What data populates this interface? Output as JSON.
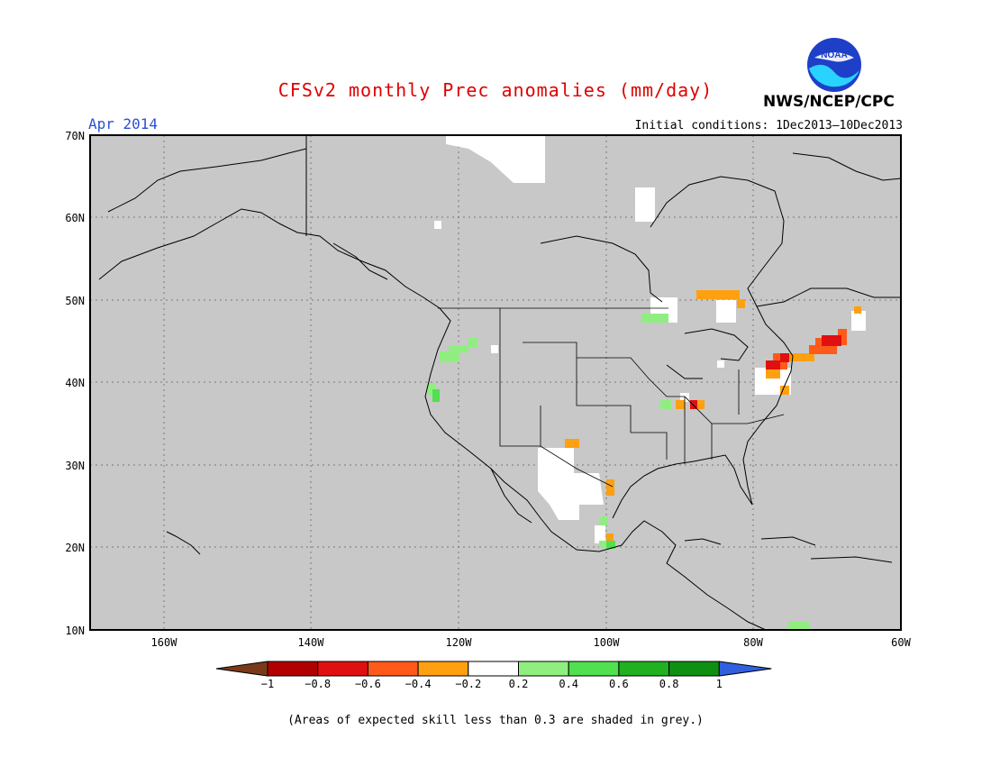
{
  "title": "CFSv2 monthly Prec anomalies (mm/day)",
  "month": "Apr 2014",
  "initial_conditions": "Initial conditions: 1Dec2013–10Dec2013",
  "agency": "NWS/NCEP/CPC",
  "logo_text": "NOAA",
  "footnote": "(Areas of expected skill less than 0.3 are shaded in grey.)",
  "lat_labels": [
    "70N",
    "60N",
    "50N",
    "40N",
    "30N",
    "20N",
    "10N"
  ],
  "lon_labels": [
    "160W",
    "140W",
    "120W",
    "100W",
    "80W",
    "60W"
  ],
  "colorbar": {
    "labels": [
      "−1",
      "−0.8",
      "−0.6",
      "−0.4",
      "−0.2",
      "0.2",
      "0.4",
      "0.6",
      "0.8",
      "1"
    ],
    "colors": [
      "#7a3a1a",
      "#b00000",
      "#e01010",
      "#ff5a1a",
      "#ffa010",
      "#ffffff",
      "#90ee80",
      "#50e050",
      "#20b020",
      "#109010",
      "#3060e0"
    ]
  },
  "colors": {
    "grey_mask": "#c8c8c8",
    "title": "#e00000",
    "month": "#2b4fd6"
  }
}
